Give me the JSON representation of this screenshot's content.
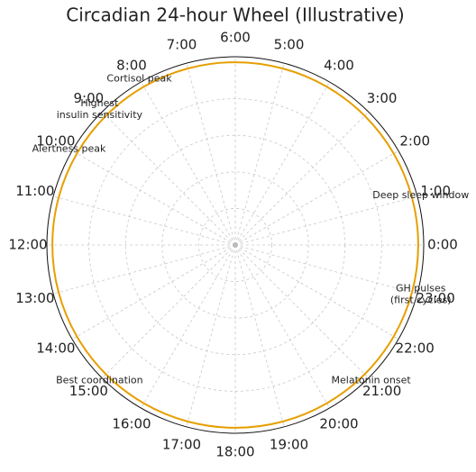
{
  "chart_data": {
    "type": "polar-line",
    "title": "Circadian 24-hour Wheel (Illustrative)",
    "rlim": [
      0,
      1.03
    ],
    "rticks": [
      0.2,
      0.4,
      0.6,
      0.8,
      1.0
    ],
    "xlim": [
      0,
      24
    ],
    "xticks": [
      {
        "value": 0,
        "label": "0:00"
      },
      {
        "value": 1,
        "label": "1:00"
      },
      {
        "value": 2,
        "label": "2:00"
      },
      {
        "value": 3,
        "label": "3:00"
      },
      {
        "value": 4,
        "label": "4:00"
      },
      {
        "value": 5,
        "label": "5:00"
      },
      {
        "value": 6,
        "label": "6:00"
      },
      {
        "value": 7,
        "label": "7:00"
      },
      {
        "value": 8,
        "label": "8:00"
      },
      {
        "value": 9,
        "label": "9:00"
      },
      {
        "value": 10,
        "label": "10:00"
      },
      {
        "value": 11,
        "label": "11:00"
      },
      {
        "value": 12,
        "label": "12:00"
      },
      {
        "value": 13,
        "label": "13:00"
      },
      {
        "value": 14,
        "label": "14:00"
      },
      {
        "value": 15,
        "label": "15:00"
      },
      {
        "value": 16,
        "label": "16:00"
      },
      {
        "value": 17,
        "label": "17:00"
      },
      {
        "value": 18,
        "label": "18:00"
      },
      {
        "value": 19,
        "label": "19:00"
      },
      {
        "value": 20,
        "label": "20:00"
      },
      {
        "value": 21,
        "label": "21:00"
      },
      {
        "value": 22,
        "label": "22:00"
      },
      {
        "value": 23,
        "label": "23:00"
      }
    ],
    "grid": true,
    "series": [
      {
        "color": "#e69f00",
        "x": [
          0,
          1,
          2,
          3,
          4,
          5,
          6,
          7,
          8,
          9,
          10,
          11,
          12,
          13,
          14,
          15,
          16,
          17,
          18,
          19,
          20,
          21,
          22,
          23,
          24
        ],
        "values": [
          1,
          1,
          1,
          1,
          1,
          1,
          1,
          1,
          1,
          1,
          1,
          1,
          1,
          1,
          1,
          1,
          1,
          1,
          1,
          1,
          1,
          1,
          1,
          1,
          1
        ]
      }
    ],
    "annotations": [
      {
        "hour": 8,
        "text": [
          "Cortisol peak"
        ]
      },
      {
        "hour": 9,
        "text": [
          "Highest",
          "insulin sensitivity"
        ]
      },
      {
        "hour": 10,
        "text": [
          "Alertness peak"
        ]
      },
      {
        "hour": 1,
        "text": [
          "Deep sleep window"
        ]
      },
      {
        "hour": 23,
        "text": [
          "GH pulses",
          "(first cycles)"
        ]
      },
      {
        "hour": 21,
        "text": [
          "Melatonin onset"
        ]
      },
      {
        "hour": 15,
        "text": [
          "Best coordination"
        ]
      }
    ]
  }
}
